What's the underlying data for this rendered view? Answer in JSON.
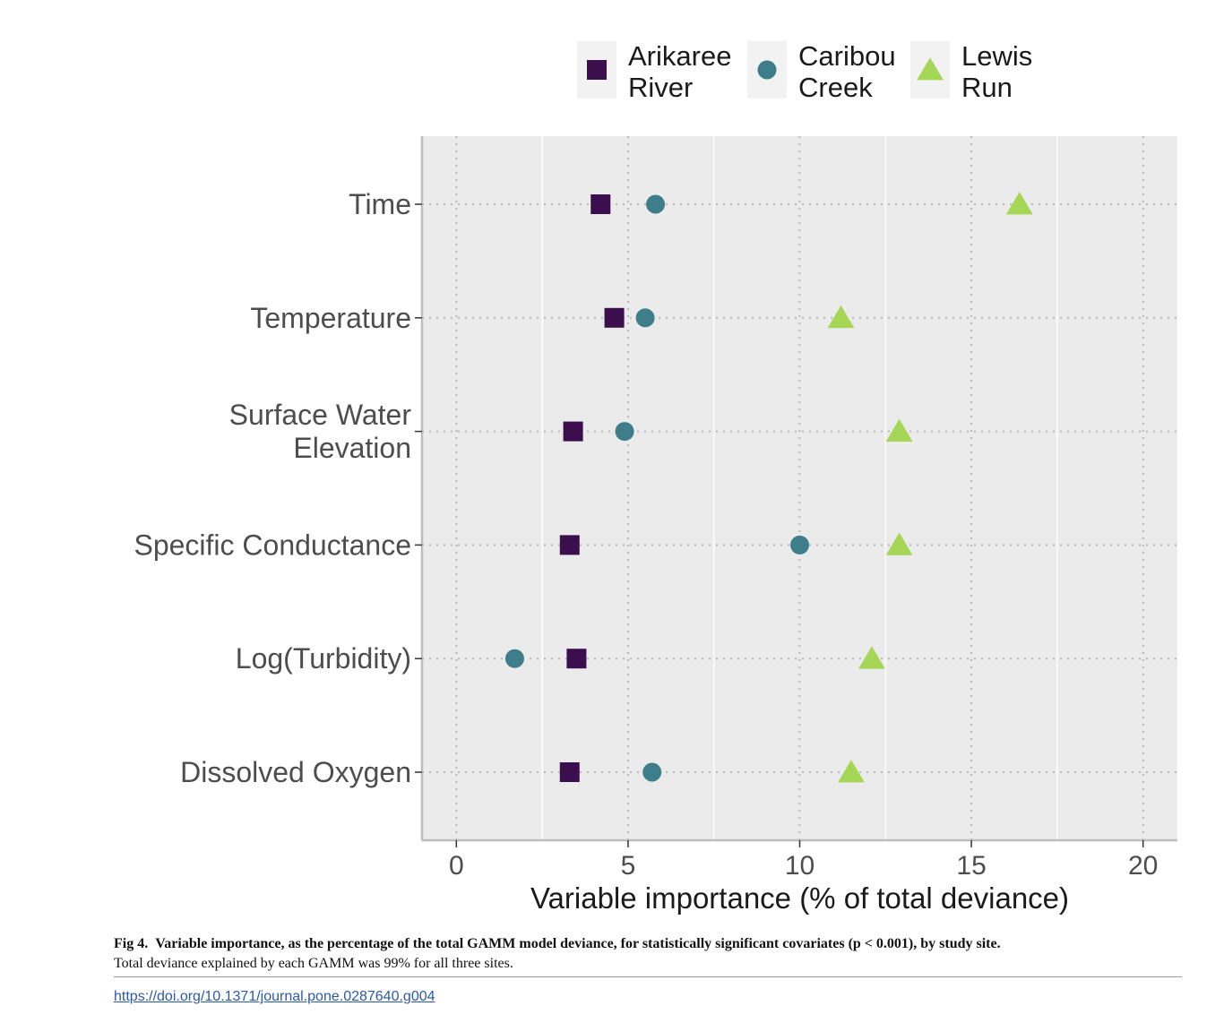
{
  "chart_data": {
    "type": "scatter",
    "xlabel": "Variable importance (% of total deviance)",
    "ylabel": "",
    "xlim": [
      -1,
      21
    ],
    "xticks": [
      0,
      5,
      10,
      15,
      20
    ],
    "grid": true,
    "legend_position": "top",
    "categories": [
      "Time",
      "Temperature",
      "Surface Water Elevation",
      "Specific Conductance",
      "Log(Turbidity)",
      "Dissolved Oxygen"
    ],
    "category_lines": [
      [
        "Time"
      ],
      [
        "Temperature"
      ],
      [
        "Surface Water",
        "Elevation"
      ],
      [
        "Specific Conductance"
      ],
      [
        "Log(Turbidity)"
      ],
      [
        "Dissolved Oxygen"
      ]
    ],
    "series": [
      {
        "name": "Arikaree River",
        "name_lines": [
          "Arikaree",
          "River"
        ],
        "shape": "square",
        "color": "#3b0f4e",
        "values": [
          4.2,
          4.6,
          3.4,
          3.3,
          3.5,
          3.3
        ]
      },
      {
        "name": "Caribou Creek",
        "name_lines": [
          "Caribou",
          "Creek"
        ],
        "shape": "circle",
        "color": "#3e7d8a",
        "values": [
          5.8,
          5.5,
          4.9,
          10.0,
          1.7,
          5.7
        ]
      },
      {
        "name": "Lewis Run",
        "name_lines": [
          "Lewis",
          "Run"
        ],
        "shape": "triangle",
        "color": "#a5d655",
        "values": [
          16.4,
          11.2,
          12.9,
          12.9,
          12.1,
          11.5
        ]
      }
    ]
  },
  "caption": {
    "label": "Fig 4.",
    "title": "Variable importance, as the percentage of the total GAMM model deviance, for statistically significant covariates (p < 0.001), by study site.",
    "note": "Total deviance explained by each GAMM was 99% for all three sites."
  },
  "doi": "https://doi.org/10.1371/journal.pone.0287640.g004"
}
